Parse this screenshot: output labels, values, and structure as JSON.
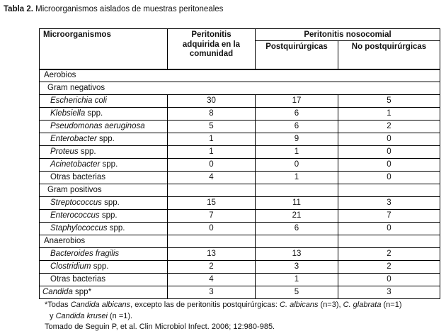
{
  "title": {
    "bold": "Tabla 2.",
    "rest": " Microorganismos aislados de muestras peritoneales"
  },
  "table": {
    "columns": {
      "microorganisms": "Microorganismos",
      "community": "Peritonitis adquirida en la comunidad",
      "nosocomial_group": "Peritonitis nosocomial",
      "postsurgical": "Postquirúrgicas",
      "non_postsurgical": "No postquirúrgicas"
    },
    "rows": [
      {
        "span": true,
        "indent": 1,
        "label": [
          {
            "t": "Aerobios",
            "i": false
          }
        ],
        "values": []
      },
      {
        "span": true,
        "indent": 2,
        "label": [
          {
            "t": "Gram negativos",
            "i": false
          }
        ],
        "values": []
      },
      {
        "span": false,
        "indent": 3,
        "label": [
          {
            "t": "Escherichia coli",
            "i": true
          }
        ],
        "values": [
          "30",
          "17",
          "5"
        ]
      },
      {
        "span": false,
        "indent": 3,
        "label": [
          {
            "t": "Klebsiella",
            "i": true
          },
          {
            "t": " spp.",
            "i": false
          }
        ],
        "values": [
          "8",
          "6",
          "1"
        ]
      },
      {
        "span": false,
        "indent": 3,
        "label": [
          {
            "t": "Pseudomonas aeruginosa",
            "i": true
          }
        ],
        "values": [
          "5",
          "6",
          "2"
        ]
      },
      {
        "span": false,
        "indent": 3,
        "label": [
          {
            "t": "Enterobacter",
            "i": true
          },
          {
            "t": " spp.",
            "i": false
          }
        ],
        "values": [
          "1",
          "9",
          "0"
        ]
      },
      {
        "span": false,
        "indent": 3,
        "label": [
          {
            "t": "Proteus",
            "i": true
          },
          {
            "t": " spp.",
            "i": false
          }
        ],
        "values": [
          "1",
          "1",
          "0"
        ]
      },
      {
        "span": false,
        "indent": 3,
        "label": [
          {
            "t": "Acinetobacter",
            "i": true
          },
          {
            "t": " spp.",
            "i": false
          }
        ],
        "values": [
          "0",
          "0",
          "0"
        ]
      },
      {
        "span": false,
        "indent": 3,
        "label": [
          {
            "t": "Otras bacterias",
            "i": false
          }
        ],
        "values": [
          "4",
          "1",
          "0"
        ]
      },
      {
        "span": false,
        "indent": 2,
        "label": [
          {
            "t": "Gram positivos",
            "i": false
          }
        ],
        "values": [
          "",
          "",
          ""
        ]
      },
      {
        "span": false,
        "indent": 3,
        "label": [
          {
            "t": "Streptococcus",
            "i": true
          },
          {
            "t": " spp.",
            "i": false
          }
        ],
        "values": [
          "15",
          "11",
          "3"
        ]
      },
      {
        "span": false,
        "indent": 3,
        "label": [
          {
            "t": "Enterococcus",
            "i": true
          },
          {
            "t": " spp.",
            "i": false
          }
        ],
        "values": [
          "7",
          "21",
          "7"
        ]
      },
      {
        "span": false,
        "indent": 3,
        "label": [
          {
            "t": "Staphylococcus",
            "i": true
          },
          {
            "t": " spp.",
            "i": false
          }
        ],
        "values": [
          "0",
          "6",
          "0"
        ]
      },
      {
        "span": false,
        "indent": 1,
        "label": [
          {
            "t": "Anaerobios",
            "i": false
          }
        ],
        "values": [
          "",
          "",
          ""
        ]
      },
      {
        "span": false,
        "indent": 3,
        "label": [
          {
            "t": "Bacteroides fragilis",
            "i": true
          }
        ],
        "values": [
          "13",
          "13",
          "2"
        ]
      },
      {
        "span": false,
        "indent": 3,
        "label": [
          {
            "t": "Clostridium",
            "i": true
          },
          {
            "t": " spp.",
            "i": false
          }
        ],
        "values": [
          "2",
          "3",
          "2"
        ]
      },
      {
        "span": false,
        "indent": 3,
        "label": [
          {
            "t": "Otras bacterias",
            "i": false
          }
        ],
        "values": [
          "4",
          "1",
          "0"
        ]
      },
      {
        "span": false,
        "indent": 0,
        "label": [
          {
            "t": "Candida",
            "i": true
          },
          {
            "t": " spp*",
            "i": false
          }
        ],
        "values": [
          "3",
          "5",
          "3"
        ]
      }
    ]
  },
  "footnotes": [
    [
      {
        "t": "*Todas ",
        "i": false
      },
      {
        "t": "Candida albicans",
        "i": true
      },
      {
        "t": ", excepto las de peritonitis postquirúrgicas: ",
        "i": false
      },
      {
        "t": "C. albicans",
        "i": true
      },
      {
        "t": " (n=3), ",
        "i": false
      },
      {
        "t": "C. glabrata",
        "i": true
      },
      {
        "t": " (n=1)",
        "i": false
      }
    ],
    [
      {
        "t": "y ",
        "i": false
      },
      {
        "t": "Candida krusei",
        "i": true
      },
      {
        "t": " (n =1).",
        "i": false
      }
    ],
    [
      {
        "t": "Tomado de Seguin P, et al. Clin Microbiol Infect. 2006; 12:980-985.",
        "i": false
      }
    ]
  ]
}
